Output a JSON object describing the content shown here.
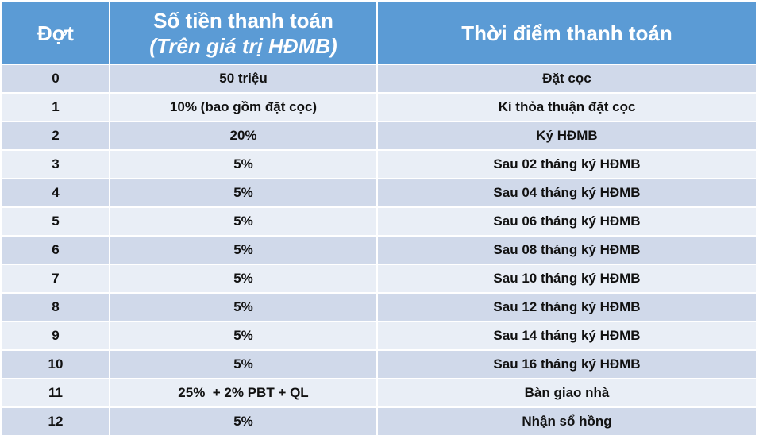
{
  "table": {
    "header": [
      {
        "text": "Đợt"
      },
      {
        "text": "Số tiền thanh toán",
        "note": "(Trên giá trị HĐMB)"
      },
      {
        "text": "Thời điểm thanh toán"
      }
    ],
    "rows": [
      [
        "0",
        "50 triệu",
        "Đặt cọc"
      ],
      [
        "1",
        "10% (bao gồm đặt cọc)",
        "Kí thỏa thuận đặt cọc"
      ],
      [
        "2",
        "20%",
        "Ký HĐMB"
      ],
      [
        "3",
        "5%",
        "Sau 02 tháng ký HĐMB"
      ],
      [
        "4",
        "5%",
        "Sau 04 tháng ký HĐMB"
      ],
      [
        "5",
        "5%",
        "Sau 06 tháng ký HĐMB"
      ],
      [
        "6",
        "5%",
        "Sau 08 tháng ký HĐMB"
      ],
      [
        "7",
        "5%",
        "Sau 10 tháng ký HĐMB"
      ],
      [
        "8",
        "5%",
        "Sau 12 tháng ký HĐMB"
      ],
      [
        "9",
        "5%",
        "Sau 14 tháng ký HĐMB"
      ],
      [
        "10",
        "5%",
        "Sau 16 tháng ký HĐMB"
      ],
      [
        "11",
        "25%  + 2% PBT + QL",
        "Bàn giao nhà"
      ],
      [
        "12",
        "5%",
        "Nhận sổ hồng"
      ]
    ]
  }
}
